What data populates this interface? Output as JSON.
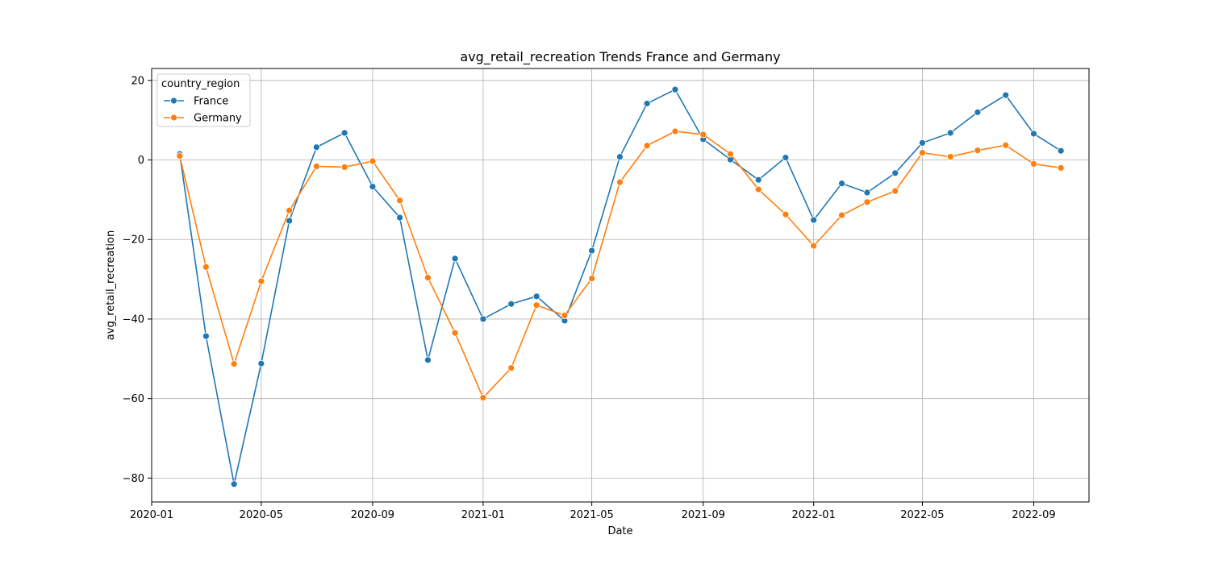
{
  "chart_data": {
    "type": "line",
    "title": "avg_retail_recreation Trends France and Germany",
    "xlabel": "Date",
    "ylabel": "avg_retail_recreation",
    "grid": true,
    "legend": {
      "title": "country_region",
      "placement": "top-left"
    },
    "x": [
      "2020-02",
      "2020-03",
      "2020-04",
      "2020-05",
      "2020-06",
      "2020-07",
      "2020-08",
      "2020-09",
      "2020-10",
      "2020-11",
      "2020-12",
      "2021-01",
      "2021-02",
      "2021-03",
      "2021-04",
      "2021-05",
      "2021-06",
      "2021-07",
      "2021-08",
      "2021-09",
      "2021-10",
      "2021-11",
      "2021-12",
      "2022-01",
      "2022-02",
      "2022-03",
      "2022-04",
      "2022-05",
      "2022-06",
      "2022-07",
      "2022-08",
      "2022-09",
      "2022-10"
    ],
    "x_ticks": [
      "2020-01",
      "2020-05",
      "2020-09",
      "2021-01",
      "2021-05",
      "2021-09",
      "2022-01",
      "2022-05",
      "2022-09"
    ],
    "y_ticks": [
      20,
      0,
      -20,
      -40,
      -60,
      -80
    ],
    "y_tick_labels": [
      "20",
      "0",
      "−20",
      "−40",
      "−60",
      "−80"
    ],
    "xlim": [
      "2020-01-01",
      "2022-11-01"
    ],
    "ylim": [
      -86,
      23
    ],
    "series": [
      {
        "name": "France",
        "color": "#1f77b4",
        "values": [
          1.5,
          -44.3,
          -81.5,
          -51.2,
          -15.3,
          3.2,
          6.8,
          -6.7,
          -14.5,
          -50.3,
          -24.8,
          -40.0,
          -36.2,
          -34.3,
          -40.4,
          -22.8,
          0.8,
          14.2,
          17.7,
          5.2,
          0.1,
          -5.0,
          0.6,
          -15.1,
          -5.9,
          -8.2,
          -3.3,
          4.3,
          6.8,
          12.0,
          16.3,
          6.6,
          2.3
        ]
      },
      {
        "name": "Germany",
        "color": "#ff7f0e",
        "values": [
          1.0,
          -26.9,
          -51.3,
          -30.5,
          -12.7,
          -1.6,
          -1.8,
          -0.3,
          -10.2,
          -29.6,
          -43.5,
          -59.8,
          -52.3,
          -36.5,
          -39.1,
          -29.8,
          -5.6,
          3.6,
          7.2,
          6.4,
          1.5,
          -7.4,
          -13.7,
          -21.6,
          -13.9,
          -10.6,
          -7.8,
          1.8,
          0.8,
          2.4,
          3.7,
          -1.0,
          -2.0
        ]
      }
    ]
  }
}
